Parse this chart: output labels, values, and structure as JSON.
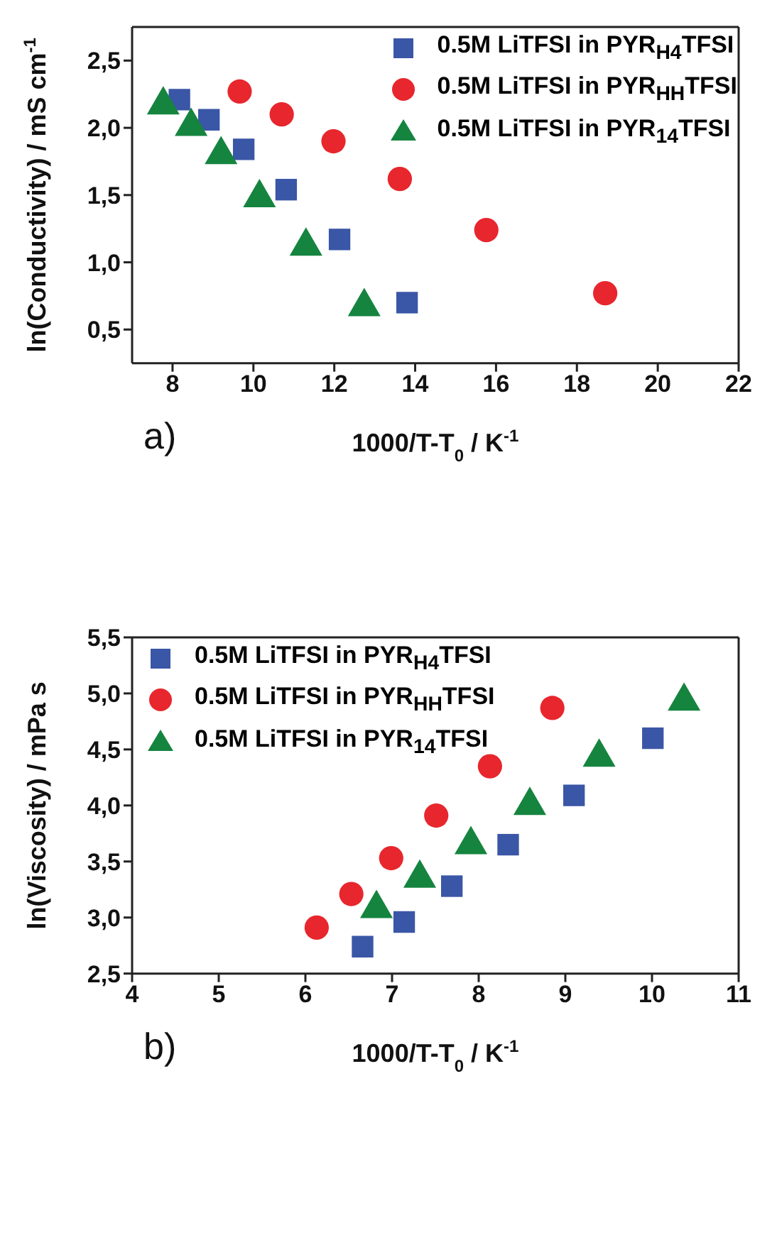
{
  "chart_data": [
    {
      "type": "scatter",
      "xlabel": "1000/T-T$_{0}$ / K$^{-1}$",
      "ylabel": "ln(Conductivity) / mS cm$^{-1}$",
      "annotations": [
        "a)"
      ],
      "xlim": [
        7,
        22
      ],
      "xticks": [
        8,
        10,
        12,
        14,
        16,
        18,
        20,
        22
      ],
      "ylim": [
        0.25,
        2.75
      ],
      "yticks": [
        {
          "value": 0.5,
          "label": "0,5"
        },
        {
          "value": 1.0,
          "label": "1,0"
        },
        {
          "value": 1.5,
          "label": "1,5"
        },
        {
          "value": 2.0,
          "label": "2,0"
        },
        {
          "value": 2.5,
          "label": "2,5"
        }
      ],
      "grid": false,
      "legend": "top right",
      "series": [
        {
          "name": "0.5M LiTFSI in PYR$_{H4}$TFSI",
          "color": "#3a56a6",
          "marker": "square",
          "x": [
            8.17,
            8.9,
            9.76,
            10.81,
            12.13,
            13.8
          ],
          "values": [
            2.21,
            2.06,
            1.84,
            1.54,
            1.17,
            0.7
          ]
        },
        {
          "name": "0.5M LiTFSI in PYR$_{HH}$TFSI",
          "color": "#e8262d",
          "marker": "circle",
          "x": [
            9.66,
            10.7,
            11.98,
            13.62,
            15.76,
            18.7
          ],
          "values": [
            2.27,
            2.1,
            1.9,
            1.62,
            1.24,
            0.77
          ]
        },
        {
          "name": "0.5M LiTFSI in PYR$_{14}$TFSI",
          "color": "#15843f",
          "marker": "triangle",
          "x": [
            7.77,
            8.46,
            9.2,
            10.15,
            11.3,
            12.74
          ],
          "values": [
            2.17,
            2.01,
            1.8,
            1.48,
            1.12,
            0.67
          ]
        }
      ]
    },
    {
      "type": "scatter",
      "xlabel": "1000/T-T$_{0}$ / K$^{-1}$",
      "ylabel": "ln(Viscosity) / mPa s",
      "annotations": [
        "b)"
      ],
      "xlim": [
        4,
        11
      ],
      "xticks": [
        4,
        5,
        6,
        7,
        8,
        9,
        10,
        11
      ],
      "ylim": [
        2.5,
        5.5
      ],
      "yticks": [
        {
          "value": 2.5,
          "label": "2,5"
        },
        {
          "value": 3.0,
          "label": "3,0"
        },
        {
          "value": 3.5,
          "label": "3,5"
        },
        {
          "value": 4.0,
          "label": "4,0"
        },
        {
          "value": 4.5,
          "label": "4,5"
        },
        {
          "value": 5.0,
          "label": "5,0"
        },
        {
          "value": 5.5,
          "label": "5,5"
        }
      ],
      "grid": false,
      "legend": "top left",
      "series": [
        {
          "name": "0.5M LiTFSI in PYR$_{H4}$TFSI",
          "color": "#3a56a6",
          "marker": "square",
          "x": [
            6.66,
            7.14,
            7.69,
            8.34,
            9.1,
            10.01
          ],
          "values": [
            2.74,
            2.96,
            3.28,
            3.65,
            4.09,
            4.6
          ]
        },
        {
          "name": "0.5M LiTFSI in PYR$_{HH}$TFSI",
          "color": "#e8262d",
          "marker": "circle",
          "x": [
            6.13,
            6.53,
            6.99,
            7.51,
            8.13,
            8.85
          ],
          "values": [
            2.91,
            3.21,
            3.53,
            3.91,
            4.35,
            4.87
          ]
        },
        {
          "name": "0.5M LiTFSI in PYR$_{14}$TFSI",
          "color": "#15843f",
          "marker": "triangle",
          "x": [
            6.82,
            7.32,
            7.91,
            8.59,
            9.39,
            10.37
          ],
          "values": [
            3.08,
            3.35,
            3.65,
            4.0,
            4.43,
            4.93
          ]
        }
      ]
    }
  ]
}
